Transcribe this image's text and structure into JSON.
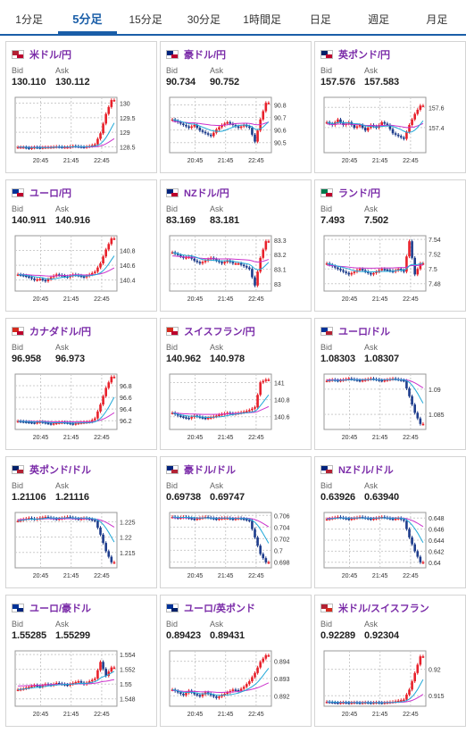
{
  "tabs": [
    {
      "label": "1分足",
      "active": false
    },
    {
      "label": "5分足",
      "active": true
    },
    {
      "label": "15分足",
      "active": false
    },
    {
      "label": "30分足",
      "active": false
    },
    {
      "label": "1時間足",
      "active": false
    },
    {
      "label": "日足",
      "active": false
    },
    {
      "label": "週足",
      "active": false
    },
    {
      "label": "月足",
      "active": false
    }
  ],
  "bid_label": "Bid",
  "ask_label": "Ask",
  "x_labels": [
    "20:45",
    "21:45",
    "22:45"
  ],
  "colors": {
    "up": "#e8202a",
    "down": "#1d3c8c",
    "ma_short": "#1fa8d8",
    "ma_long": "#cc33cc",
    "grid": "#cccccc",
    "accent": "#1a5ea8",
    "pair": "#7a2ba8"
  },
  "pairs": [
    {
      "name": "米ドル/円",
      "bid": "130.110",
      "ask": "130.112",
      "flag": [
        "#b22234",
        "#bc002d"
      ],
      "chart_data": {
        "type": "candlestick",
        "yticks": [
          "130",
          "129.5",
          "129",
          "128.5"
        ],
        "ylim": [
          128.3,
          130.2
        ],
        "shape": [
          0.1,
          0.1,
          0.08,
          0.1,
          0.09,
          0.1,
          0.1,
          0.11,
          0.1,
          0.1,
          0.12,
          0.11,
          0.1,
          0.12,
          0.15,
          0.35,
          0.7,
          0.95
        ],
        "ma": 0.1,
        "trend": "up"
      }
    },
    {
      "name": "豪ドル/円",
      "bid": "90.734",
      "ask": "90.752",
      "flag": [
        "#00247d",
        "#bc002d"
      ],
      "chart_data": {
        "type": "candlestick",
        "yticks": [
          "90.8",
          "90.7",
          "90.6",
          "90.5"
        ],
        "ylim": [
          90.42,
          90.86
        ],
        "shape": [
          0.6,
          0.55,
          0.5,
          0.45,
          0.5,
          0.4,
          0.35,
          0.3,
          0.42,
          0.5,
          0.55,
          0.5,
          0.45,
          0.5,
          0.45,
          0.2,
          0.6,
          0.9
        ],
        "ma": 0.55,
        "trend": "up"
      }
    },
    {
      "name": "英ポンド/円",
      "bid": "157.576",
      "ask": "157.583",
      "flag": [
        "#012169",
        "#bc002d"
      ],
      "chart_data": {
        "type": "candlestick",
        "yticks": [
          "157.6",
          "157.4"
        ],
        "ylim": [
          157.15,
          157.7
        ],
        "shape": [
          0.55,
          0.5,
          0.6,
          0.5,
          0.55,
          0.45,
          0.5,
          0.4,
          0.5,
          0.45,
          0.55,
          0.5,
          0.35,
          0.3,
          0.25,
          0.5,
          0.7,
          0.85
        ],
        "ma": 0.5,
        "trend": "up"
      }
    },
    {
      "name": "ユーロ/円",
      "bid": "140.911",
      "ask": "140.916",
      "flag": [
        "#003399",
        "#bc002d"
      ],
      "chart_data": {
        "type": "candlestick",
        "yticks": [
          "140.8",
          "140.6",
          "140.4"
        ],
        "ylim": [
          140.25,
          141.0
        ],
        "shape": [
          0.3,
          0.28,
          0.25,
          0.2,
          0.22,
          0.18,
          0.25,
          0.3,
          0.28,
          0.25,
          0.3,
          0.28,
          0.25,
          0.3,
          0.35,
          0.5,
          0.75,
          0.95
        ],
        "ma": 0.3,
        "trend": "up"
      }
    },
    {
      "name": "NZドル/円",
      "bid": "83.169",
      "ask": "83.181",
      "flag": [
        "#00247d",
        "#bc002d"
      ],
      "chart_data": {
        "type": "candlestick",
        "yticks": [
          "83.3",
          "83.2",
          "83.1",
          "83"
        ],
        "ylim": [
          82.95,
          83.33
        ],
        "shape": [
          0.7,
          0.65,
          0.6,
          0.62,
          0.55,
          0.5,
          0.55,
          0.6,
          0.55,
          0.5,
          0.55,
          0.5,
          0.5,
          0.45,
          0.4,
          0.1,
          0.6,
          0.9
        ],
        "ma": 0.6,
        "trend": "up"
      }
    },
    {
      "name": "ランド/円",
      "bid": "7.493",
      "ask": "7.502",
      "flag": [
        "#007a4d",
        "#bc002d"
      ],
      "chart_data": {
        "type": "candlestick",
        "yticks": [
          "7.54",
          "7.52",
          "7.5",
          "7.48"
        ],
        "ylim": [
          7.47,
          7.545
        ],
        "shape": [
          0.5,
          0.45,
          0.4,
          0.35,
          0.3,
          0.35,
          0.4,
          0.35,
          0.3,
          0.35,
          0.4,
          0.38,
          0.35,
          0.4,
          0.35,
          0.9,
          0.3,
          0.5
        ],
        "ma": 0.45,
        "trend": "flat"
      }
    },
    {
      "name": "カナダドル/円",
      "bid": "96.958",
      "ask": "96.973",
      "flag": [
        "#d52b1e",
        "#bc002d"
      ],
      "chart_data": {
        "type": "candlestick",
        "yticks": [
          "96.8",
          "96.6",
          "96.4",
          "96.2"
        ],
        "ylim": [
          96.05,
          97.0
        ],
        "shape": [
          0.15,
          0.14,
          0.13,
          0.12,
          0.14,
          0.12,
          0.1,
          0.12,
          0.13,
          0.12,
          0.1,
          0.12,
          0.13,
          0.14,
          0.2,
          0.45,
          0.75,
          0.95
        ],
        "ma": 0.15,
        "trend": "up"
      }
    },
    {
      "name": "スイスフラン/円",
      "bid": "140.962",
      "ask": "140.978",
      "flag": [
        "#d52b1e",
        "#bc002d"
      ],
      "chart_data": {
        "type": "candlestick",
        "yticks": [
          "141",
          "140.8",
          "140.6"
        ],
        "ylim": [
          140.45,
          141.1
        ],
        "shape": [
          0.3,
          0.25,
          0.22,
          0.2,
          0.25,
          0.22,
          0.2,
          0.22,
          0.25,
          0.28,
          0.3,
          0.28,
          0.3,
          0.32,
          0.35,
          0.4,
          0.85,
          0.9
        ],
        "ma": 0.3,
        "trend": "up"
      }
    },
    {
      "name": "ユーロ/ドル",
      "bid": "1.08303",
      "ask": "1.08307",
      "flag": [
        "#003399",
        "#b22234"
      ],
      "chart_data": {
        "type": "candlestick",
        "yticks": [
          "1.09",
          "1.085"
        ],
        "ylim": [
          1.082,
          1.093
        ],
        "shape": [
          0.88,
          0.9,
          0.88,
          0.9,
          0.92,
          0.9,
          0.88,
          0.9,
          0.92,
          0.9,
          0.88,
          0.9,
          0.92,
          0.9,
          0.88,
          0.6,
          0.3,
          0.1
        ],
        "ma": 0.9,
        "trend": "down"
      }
    },
    {
      "name": "英ポンド/ドル",
      "bid": "1.21106",
      "ask": "1.21116",
      "flag": [
        "#012169",
        "#b22234"
      ],
      "chart_data": {
        "type": "candlestick",
        "yticks": [
          "1.225",
          "1.22",
          "1.215"
        ],
        "ylim": [
          1.21,
          1.228
        ],
        "shape": [
          0.85,
          0.88,
          0.9,
          0.88,
          0.9,
          0.92,
          0.9,
          0.88,
          0.9,
          0.92,
          0.9,
          0.88,
          0.9,
          0.88,
          0.85,
          0.6,
          0.3,
          0.1
        ],
        "ma": 0.88,
        "trend": "down"
      }
    },
    {
      "name": "豪ドル/ドル",
      "bid": "0.69738",
      "ask": "0.69747",
      "flag": [
        "#00247d",
        "#b22234"
      ],
      "chart_data": {
        "type": "candlestick",
        "yticks": [
          "0.706",
          "0.704",
          "0.702",
          "0.7",
          "0.698"
        ],
        "ylim": [
          0.697,
          0.7065
        ],
        "shape": [
          0.92,
          0.9,
          0.92,
          0.9,
          0.88,
          0.9,
          0.92,
          0.9,
          0.88,
          0.9,
          0.9,
          0.88,
          0.9,
          0.88,
          0.85,
          0.55,
          0.25,
          0.1
        ],
        "ma": 0.9,
        "trend": "down"
      }
    },
    {
      "name": "NZドル/ドル",
      "bid": "0.63926",
      "ask": "0.63940",
      "flag": [
        "#00247d",
        "#b22234"
      ],
      "chart_data": {
        "type": "candlestick",
        "yticks": [
          "0.648",
          "0.646",
          "0.644",
          "0.642",
          "0.64"
        ],
        "ylim": [
          0.639,
          0.649
        ],
        "shape": [
          0.88,
          0.9,
          0.92,
          0.9,
          0.88,
          0.9,
          0.92,
          0.9,
          0.88,
          0.9,
          0.92,
          0.9,
          0.88,
          0.9,
          0.85,
          0.55,
          0.3,
          0.1
        ],
        "ma": 0.9,
        "trend": "down"
      }
    },
    {
      "name": "ユーロ/豪ドル",
      "bid": "1.55285",
      "ask": "1.55299",
      "flag": [
        "#003399",
        "#00247d"
      ],
      "chart_data": {
        "type": "candlestick",
        "yticks": [
          "1.554",
          "1.552",
          "1.55",
          "1.548"
        ],
        "ylim": [
          1.547,
          1.5545
        ],
        "shape": [
          0.3,
          0.32,
          0.35,
          0.38,
          0.35,
          0.4,
          0.38,
          0.42,
          0.4,
          0.38,
          0.42,
          0.45,
          0.4,
          0.45,
          0.5,
          0.8,
          0.55,
          0.7
        ],
        "ma": 0.4,
        "trend": "up"
      }
    },
    {
      "name": "ユーロ/英ポンド",
      "bid": "0.89423",
      "ask": "0.89431",
      "flag": [
        "#003399",
        "#012169"
      ],
      "chart_data": {
        "type": "candlestick",
        "yticks": [
          "0.894",
          "0.893",
          "0.892"
        ],
        "ylim": [
          0.8914,
          0.8946
        ],
        "shape": [
          0.3,
          0.25,
          0.2,
          0.28,
          0.22,
          0.18,
          0.25,
          0.2,
          0.15,
          0.2,
          0.25,
          0.3,
          0.28,
          0.35,
          0.45,
          0.6,
          0.8,
          0.92
        ],
        "ma": 0.28,
        "trend": "up"
      }
    },
    {
      "name": "米ドル/スイスフラン",
      "bid": "0.92289",
      "ask": "0.92304",
      "flag": [
        "#b22234",
        "#d52b1e"
      ],
      "chart_data": {
        "type": "candlestick",
        "yticks": [
          "0.92",
          "0.915"
        ],
        "ylim": [
          0.913,
          0.9235
        ],
        "shape": [
          0.08,
          0.07,
          0.06,
          0.07,
          0.06,
          0.07,
          0.06,
          0.07,
          0.06,
          0.07,
          0.06,
          0.07,
          0.08,
          0.1,
          0.12,
          0.3,
          0.6,
          0.9
        ],
        "ma": 0.07,
        "trend": "up"
      }
    }
  ]
}
